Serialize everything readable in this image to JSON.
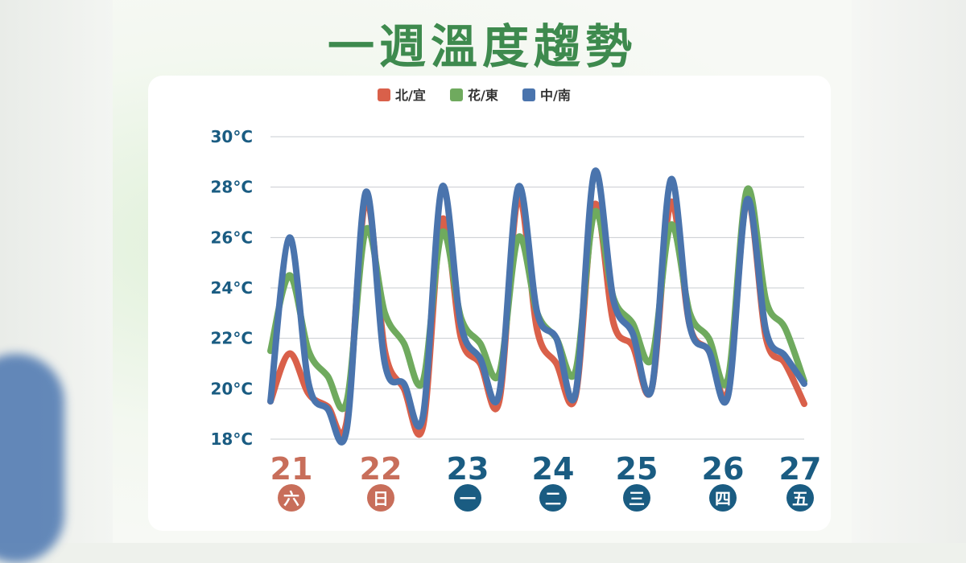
{
  "title": "一週溫度趨勢",
  "colors": {
    "north_yilan": "#d9604a",
    "hualien_taitung": "#6faa5e",
    "central_south": "#4a74ad",
    "weekend_day": "#c86e5a",
    "weekday": "#1a5c82",
    "title": "#3e8a4e"
  },
  "chart_data": {
    "type": "line",
    "title": "一週溫度趨勢",
    "ylim": [
      18,
      30
    ],
    "y_ticks": [
      "18°C",
      "20°C",
      "22°C",
      "24°C",
      "26°C",
      "28°C",
      "30°C"
    ],
    "y_tick_values": [
      18,
      20,
      22,
      24,
      26,
      28,
      30
    ],
    "grid": true,
    "legend_position": "top-center",
    "days": [
      {
        "date": "21",
        "weekday": "六",
        "weekend": true
      },
      {
        "date": "22",
        "weekday": "日",
        "weekend": true
      },
      {
        "date": "23",
        "weekday": "一",
        "weekend": false
      },
      {
        "date": "24",
        "weekday": "二",
        "weekend": false
      },
      {
        "date": "25",
        "weekday": "三",
        "weekend": false
      },
      {
        "date": "26",
        "weekday": "四",
        "weekend": false
      },
      {
        "date": "27",
        "weekday": "五",
        "weekend": false
      }
    ],
    "x_hours": [
      0,
      3,
      6,
      9,
      12,
      15,
      18,
      21,
      24,
      27,
      30,
      33,
      36,
      39,
      42,
      45,
      48,
      51,
      54,
      57,
      60,
      63,
      66,
      69,
      72,
      75,
      78,
      81,
      84,
      87,
      90,
      93,
      96,
      99,
      102,
      105,
      108,
      111,
      114,
      117,
      120,
      123,
      126,
      129,
      132,
      135,
      138,
      141,
      144,
      147,
      150,
      153,
      156,
      159,
      162,
      165,
      168
    ],
    "series": [
      {
        "name": "北/宜",
        "color_key": "north_yilan",
        "values": [
          19.5,
          21.4,
          19.8,
          19.3,
          18.7,
          27.5,
          21.5,
          20.0,
          18.5,
          26.7,
          22.0,
          21.0,
          19.5,
          27.6,
          22.3,
          21.0,
          19.7,
          27.3,
          22.6,
          21.7,
          20.0,
          27.4,
          22.5,
          21.5,
          19.9,
          27.5,
          22.0,
          21.0,
          19.4,
          19.4,
          19.4,
          19.4,
          19.4,
          19.4,
          19.4,
          19.4,
          19.4,
          19.4,
          19.4,
          19.4,
          19.4,
          19.4,
          19.4,
          19.4,
          19.4,
          19.4,
          19.4,
          19.4,
          19.4,
          19.4,
          19.4,
          19.4,
          19.4,
          19.4,
          19.4,
          19.4,
          19.4
        ]
      },
      {
        "name": "花/東",
        "color_key": "hualien_taitung",
        "values": [
          21.5,
          24.5,
          21.5,
          20.5,
          19.5,
          26.3,
          23.0,
          21.8,
          20.3,
          26.2,
          22.8,
          21.8,
          20.6,
          26.0,
          23.0,
          22.0,
          20.7,
          27.0,
          23.6,
          22.6,
          21.2,
          26.5,
          23.0,
          22.0,
          20.4,
          27.9,
          23.5,
          22.4,
          20.3,
          20.3,
          20.3,
          20.3,
          20.3,
          20.3,
          20.3,
          20.3,
          20.3,
          20.3,
          20.3,
          20.3,
          20.3,
          20.3,
          20.3,
          20.3,
          20.3,
          20.3,
          20.3,
          20.3,
          20.3,
          20.3,
          20.3,
          20.3,
          20.3,
          20.3,
          20.3,
          20.3,
          20.3
        ]
      },
      {
        "name": "中/南",
        "color_key": "central_south",
        "values": [
          19.5,
          26.0,
          20.2,
          19.2,
          18.4,
          27.8,
          21.0,
          20.2,
          18.9,
          28.0,
          22.5,
          21.2,
          19.8,
          28.0,
          23.0,
          22.0,
          19.8,
          28.6,
          23.5,
          22.2,
          20.0,
          28.3,
          22.5,
          21.5,
          19.7,
          27.5,
          22.3,
          21.3,
          20.2,
          20.2,
          20.2,
          20.2,
          20.2,
          20.2,
          20.2,
          20.2,
          20.2,
          20.2,
          20.2,
          20.2,
          20.2,
          20.2,
          20.2,
          20.2,
          20.2,
          20.2,
          20.2,
          20.2,
          20.2,
          20.2,
          20.2,
          20.2,
          20.2,
          20.2,
          20.2,
          20.2,
          20.2
        ]
      }
    ]
  }
}
